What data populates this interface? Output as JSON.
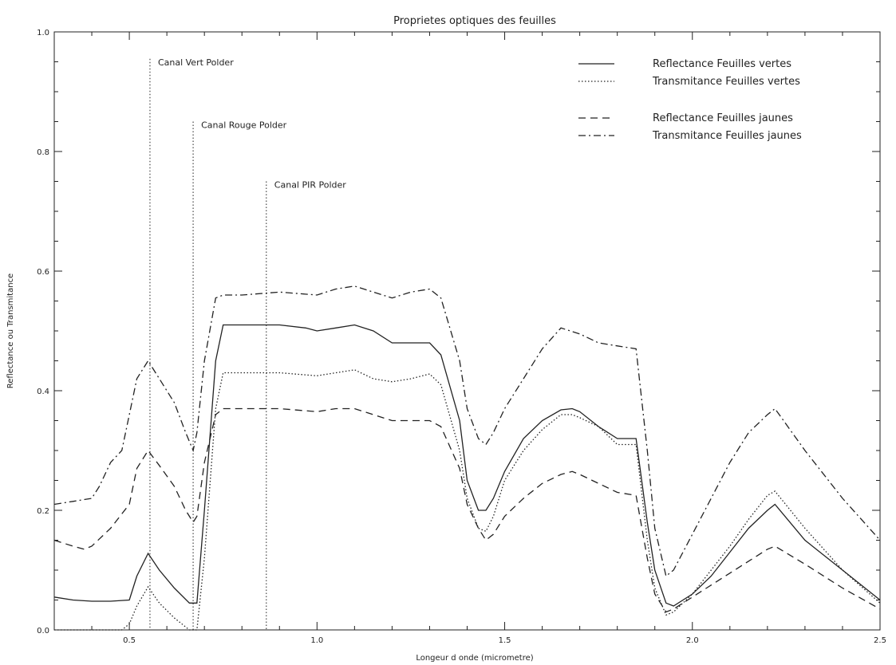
{
  "chart_data": {
    "type": "line",
    "title": "Proprietes optiques des feuilles",
    "xlabel": "Longeur d onde (micrometre)",
    "ylabel": "Reflectance ou Transmitance",
    "xlim": [
      0.3,
      2.5
    ],
    "ylim": [
      0.0,
      1.0
    ],
    "xticks": [
      0.5,
      1.0,
      1.5,
      2.0,
      2.5
    ],
    "xtick_labels": [
      "0.5",
      "1.0",
      "1.5",
      "2.0",
      "2.5"
    ],
    "yticks": [
      0.0,
      0.2,
      0.4,
      0.6,
      0.8,
      1.0
    ],
    "ytick_labels": [
      "0.0",
      "0.2",
      "0.4",
      "0.6",
      "0.8",
      "1.0"
    ],
    "grid": false,
    "legend_position": "top-right",
    "series": [
      {
        "name": "Reflectance Feuilles vertes",
        "style": "solid",
        "x": [
          0.3,
          0.35,
          0.4,
          0.45,
          0.5,
          0.52,
          0.55,
          0.58,
          0.62,
          0.66,
          0.68,
          0.7,
          0.73,
          0.75,
          0.8,
          0.9,
          0.97,
          1.0,
          1.05,
          1.1,
          1.15,
          1.2,
          1.25,
          1.3,
          1.33,
          1.38,
          1.4,
          1.43,
          1.45,
          1.47,
          1.5,
          1.55,
          1.6,
          1.65,
          1.68,
          1.7,
          1.75,
          1.8,
          1.85,
          1.88,
          1.9,
          1.93,
          1.95,
          2.0,
          2.05,
          2.1,
          2.15,
          2.2,
          2.22,
          2.3,
          2.4,
          2.5
        ],
        "y": [
          0.055,
          0.05,
          0.048,
          0.048,
          0.05,
          0.09,
          0.128,
          0.1,
          0.07,
          0.045,
          0.045,
          0.2,
          0.45,
          0.51,
          0.51,
          0.51,
          0.505,
          0.5,
          0.505,
          0.51,
          0.5,
          0.48,
          0.48,
          0.48,
          0.46,
          0.35,
          0.25,
          0.2,
          0.2,
          0.22,
          0.265,
          0.32,
          0.35,
          0.368,
          0.37,
          0.365,
          0.34,
          0.32,
          0.32,
          0.18,
          0.1,
          0.045,
          0.04,
          0.06,
          0.09,
          0.13,
          0.17,
          0.2,
          0.21,
          0.15,
          0.1,
          0.05
        ]
      },
      {
        "name": "Transmitance Feuilles vertes",
        "style": "dotted",
        "x": [
          0.3,
          0.4,
          0.48,
          0.5,
          0.52,
          0.55,
          0.58,
          0.62,
          0.66,
          0.68,
          0.7,
          0.73,
          0.75,
          0.8,
          0.9,
          1.0,
          1.05,
          1.1,
          1.15,
          1.2,
          1.25,
          1.3,
          1.33,
          1.38,
          1.4,
          1.43,
          1.45,
          1.47,
          1.5,
          1.55,
          1.6,
          1.65,
          1.68,
          1.7,
          1.75,
          1.8,
          1.85,
          1.88,
          1.9,
          1.93,
          1.95,
          2.0,
          2.05,
          2.1,
          2.15,
          2.2,
          2.22,
          2.3,
          2.4,
          2.5
        ],
        "y": [
          0.0,
          0.0,
          0.0,
          0.01,
          0.04,
          0.072,
          0.045,
          0.02,
          0.0,
          0.0,
          0.12,
          0.37,
          0.43,
          0.43,
          0.43,
          0.425,
          0.43,
          0.435,
          0.42,
          0.415,
          0.42,
          0.428,
          0.41,
          0.3,
          0.22,
          0.17,
          0.165,
          0.19,
          0.25,
          0.3,
          0.335,
          0.36,
          0.36,
          0.355,
          0.34,
          0.31,
          0.31,
          0.15,
          0.07,
          0.025,
          0.03,
          0.06,
          0.1,
          0.14,
          0.185,
          0.225,
          0.232,
          0.17,
          0.1,
          0.045
        ]
      },
      {
        "name": "Reflectance Feuilles jaunes",
        "style": "dashed",
        "x": [
          0.3,
          0.35,
          0.38,
          0.4,
          0.45,
          0.5,
          0.52,
          0.55,
          0.58,
          0.62,
          0.65,
          0.67,
          0.68,
          0.7,
          0.73,
          0.75,
          0.8,
          0.9,
          1.0,
          1.05,
          1.1,
          1.15,
          1.2,
          1.25,
          1.3,
          1.33,
          1.38,
          1.4,
          1.43,
          1.45,
          1.47,
          1.5,
          1.55,
          1.6,
          1.65,
          1.68,
          1.7,
          1.75,
          1.8,
          1.85,
          1.88,
          1.9,
          1.93,
          1.95,
          2.0,
          2.05,
          2.1,
          2.15,
          2.2,
          2.22,
          2.3,
          2.4,
          2.5
        ],
        "y": [
          0.15,
          0.14,
          0.135,
          0.14,
          0.17,
          0.21,
          0.27,
          0.3,
          0.275,
          0.24,
          0.2,
          0.18,
          0.19,
          0.28,
          0.36,
          0.37,
          0.37,
          0.37,
          0.365,
          0.37,
          0.37,
          0.36,
          0.35,
          0.35,
          0.35,
          0.34,
          0.27,
          0.21,
          0.17,
          0.15,
          0.16,
          0.19,
          0.22,
          0.245,
          0.26,
          0.265,
          0.26,
          0.245,
          0.23,
          0.225,
          0.12,
          0.06,
          0.03,
          0.035,
          0.055,
          0.075,
          0.095,
          0.115,
          0.135,
          0.14,
          0.11,
          0.07,
          0.035
        ]
      },
      {
        "name": "Transmitance Feuilles jaunes",
        "style": "dash-dot",
        "x": [
          0.3,
          0.35,
          0.4,
          0.42,
          0.45,
          0.48,
          0.5,
          0.52,
          0.55,
          0.58,
          0.62,
          0.65,
          0.67,
          0.68,
          0.7,
          0.73,
          0.75,
          0.8,
          0.9,
          1.0,
          1.05,
          1.1,
          1.15,
          1.2,
          1.25,
          1.3,
          1.33,
          1.38,
          1.4,
          1.43,
          1.45,
          1.47,
          1.5,
          1.55,
          1.6,
          1.65,
          1.7,
          1.75,
          1.8,
          1.85,
          1.88,
          1.9,
          1.93,
          1.95,
          2.0,
          2.05,
          2.1,
          2.15,
          2.2,
          2.22,
          2.3,
          2.4,
          2.5
        ],
        "y": [
          0.21,
          0.215,
          0.22,
          0.24,
          0.28,
          0.3,
          0.36,
          0.42,
          0.45,
          0.42,
          0.38,
          0.33,
          0.3,
          0.33,
          0.45,
          0.555,
          0.56,
          0.56,
          0.565,
          0.56,
          0.57,
          0.575,
          0.565,
          0.555,
          0.565,
          0.57,
          0.555,
          0.45,
          0.37,
          0.32,
          0.31,
          0.33,
          0.37,
          0.42,
          0.47,
          0.505,
          0.495,
          0.48,
          0.475,
          0.47,
          0.3,
          0.17,
          0.09,
          0.1,
          0.16,
          0.22,
          0.28,
          0.33,
          0.36,
          0.37,
          0.3,
          0.22,
          0.15
        ]
      }
    ],
    "annotations": [
      {
        "label": "Canal Vert Polder",
        "x": 0.555,
        "y_top": 0.955
      },
      {
        "label": "Canal Rouge Polder",
        "x": 0.67,
        "y_top": 0.85
      },
      {
        "label": "Canal PIR Polder",
        "x": 0.865,
        "y_top": 0.75
      }
    ]
  }
}
